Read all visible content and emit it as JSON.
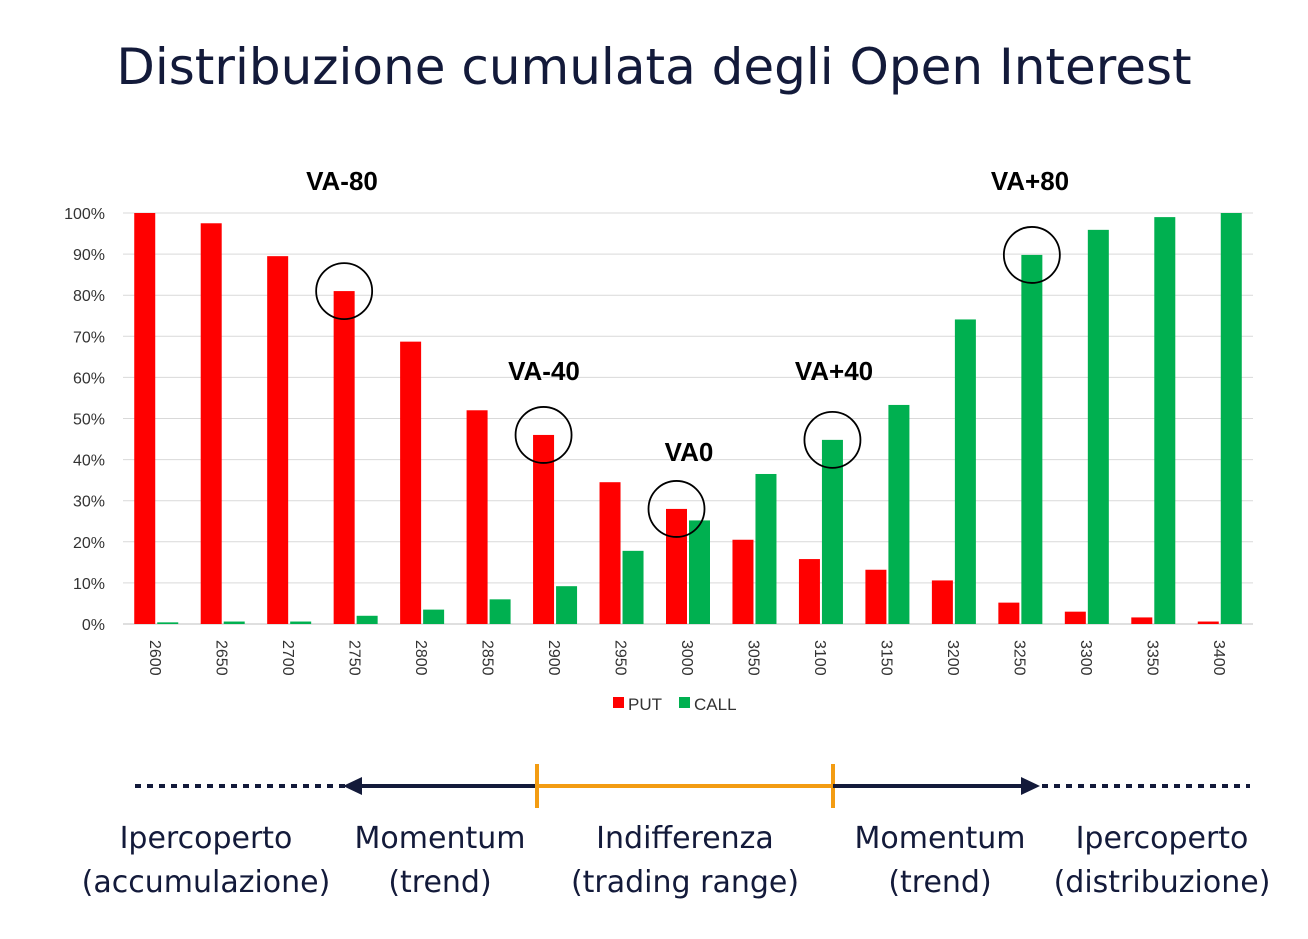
{
  "chart_data": {
    "type": "bar",
    "title": "Distribuzione cumulata degli Open Interest",
    "categories": [
      "2600",
      "2650",
      "2700",
      "2750",
      "2800",
      "2850",
      "2900",
      "2950",
      "3000",
      "3050",
      "3100",
      "3150",
      "3200",
      "3250",
      "3300",
      "3350",
      "3400"
    ],
    "series": [
      {
        "name": "PUT",
        "color": "#ff0000",
        "values": [
          100,
          97.5,
          89.5,
          81,
          68.7,
          52,
          46,
          34.5,
          28,
          20.5,
          15.8,
          13.2,
          10.6,
          5.2,
          3.0,
          1.6,
          0.6
        ]
      },
      {
        "name": "CALL",
        "color": "#00b050",
        "values": [
          0.4,
          0.6,
          0.6,
          2.0,
          3.5,
          6.0,
          9.2,
          17.8,
          25.2,
          36.5,
          44.8,
          53.3,
          74.1,
          89.8,
          95.9,
          99.0,
          100
        ]
      }
    ],
    "y_ticks": [
      "0%",
      "10%",
      "20%",
      "30%",
      "40%",
      "50%",
      "60%",
      "70%",
      "80%",
      "90%",
      "100%"
    ],
    "ylim": [
      0,
      100
    ],
    "grid": true,
    "legend": "bottom-center",
    "annotations": [
      {
        "label": "VA-80",
        "category": "2750",
        "circled_value": 81
      },
      {
        "label": "VA-40",
        "category": "2900",
        "circled_value": 46
      },
      {
        "label": "VA0",
        "category": "3000",
        "circled_value": 28
      },
      {
        "label": "VA+40",
        "category": "3100",
        "circled_value": 44.8
      },
      {
        "label": "VA+80",
        "category": "3250",
        "circled_value": 89.8
      }
    ]
  },
  "regimes": [
    {
      "line1": "Ipercoperto",
      "line2": "(accumulazione)"
    },
    {
      "line1": "Momentum",
      "line2": "(trend)"
    },
    {
      "line1": "Indifferenza",
      "line2": "(trading range)"
    },
    {
      "line1": "Momentum",
      "line2": "(trend)"
    },
    {
      "line1": "Ipercoperto",
      "line2": "(distribuzione)"
    }
  ],
  "colors": {
    "navy": "#131a3a",
    "orange": "#f39c12",
    "grid": "#d9d9d9"
  }
}
